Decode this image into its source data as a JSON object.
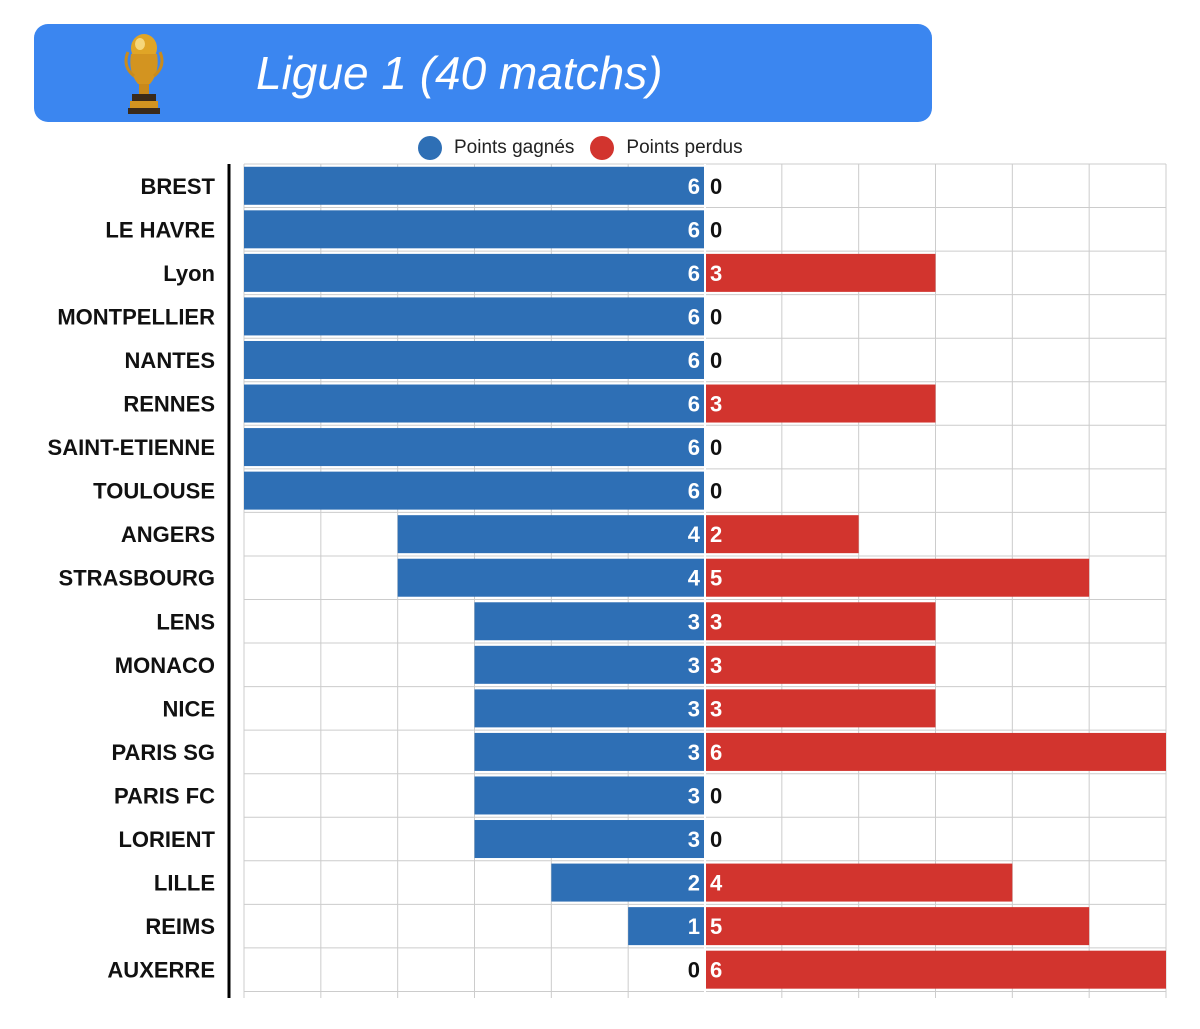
{
  "header": {
    "title": "Ligue 1 (40 matchs)",
    "icon": "trophy-icon"
  },
  "legend": {
    "won_label": "Points gagnés",
    "lost_label": "Points perdus"
  },
  "colors": {
    "banner": "#3b86f0",
    "won": "#2e6fb5",
    "lost": "#d2342e",
    "grid": "#cccccc"
  },
  "chart_data": {
    "type": "bar",
    "orientation": "horizontal-diverging",
    "categories": [
      "BREST",
      "LE HAVRE",
      "Lyon",
      "MONTPELLIER",
      "NANTES",
      "RENNES",
      "SAINT-ETIENNE",
      "TOULOUSE",
      "ANGERS",
      "STRASBOURG",
      "LENS",
      "MONACO",
      "NICE",
      "PARIS SG",
      "PARIS FC",
      "LORIENT",
      "LILLE",
      "REIMS",
      "AUXERRE"
    ],
    "series": [
      {
        "name": "Points gagnés",
        "direction": "left",
        "values": [
          6,
          6,
          6,
          6,
          6,
          6,
          6,
          6,
          4,
          4,
          3,
          3,
          3,
          3,
          3,
          3,
          2,
          1,
          0
        ]
      },
      {
        "name": "Points perdus",
        "direction": "right",
        "values": [
          0,
          0,
          3,
          0,
          0,
          3,
          0,
          0,
          2,
          5,
          3,
          3,
          3,
          6,
          0,
          0,
          4,
          5,
          6
        ]
      }
    ],
    "xlim": [
      -6,
      6
    ],
    "grid": true,
    "legend_position": "top-center",
    "data_labels": true
  }
}
